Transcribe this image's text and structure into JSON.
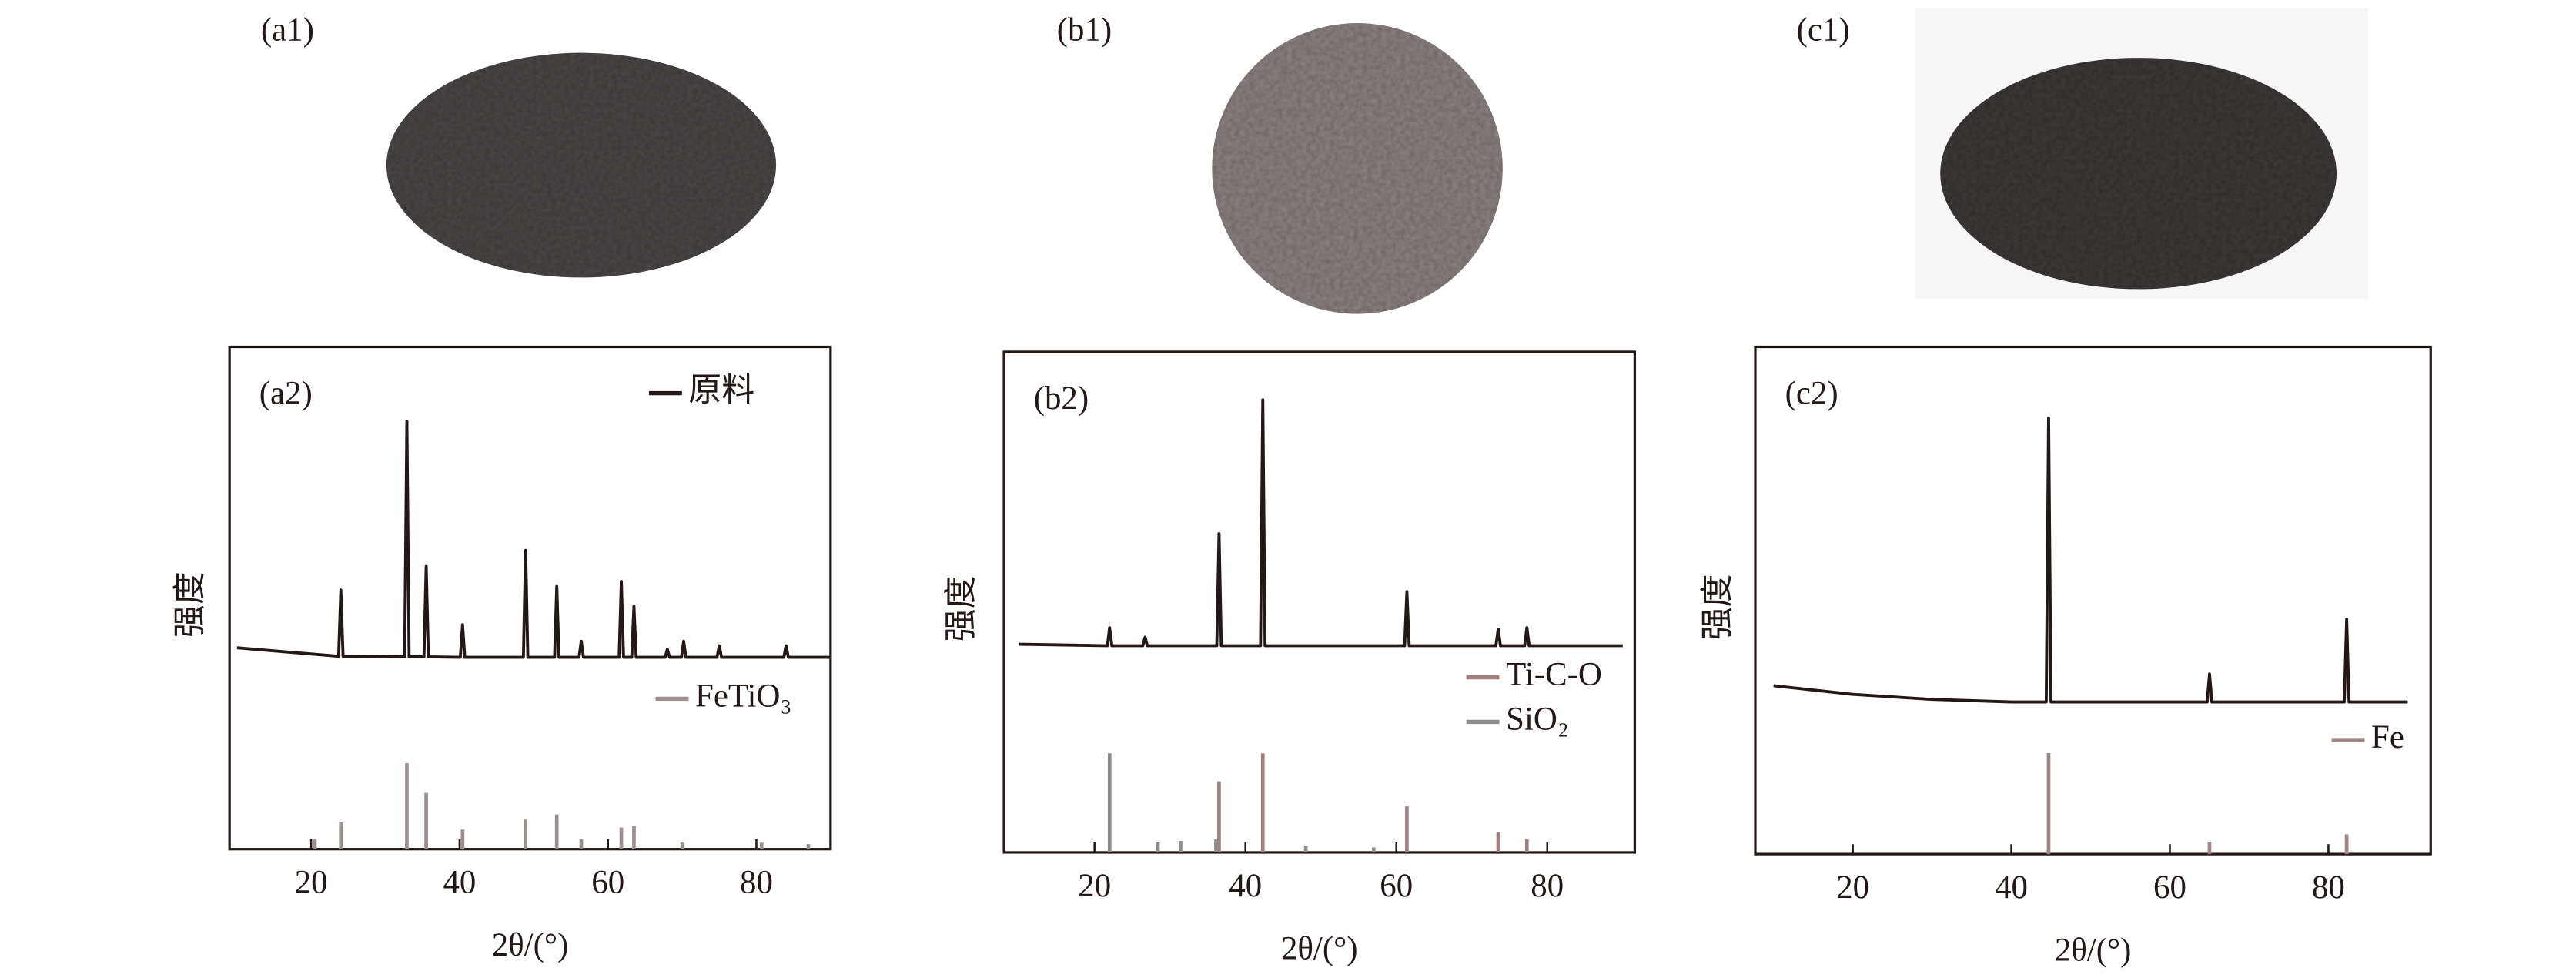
{
  "photos": [
    {
      "label": "(a1)"
    },
    {
      "label": "(b1)"
    },
    {
      "label": "(c1)"
    }
  ],
  "chart_data": [
    {
      "type": "line",
      "panel_label": "(a2)",
      "xlabel": "2θ/(°)",
      "ylabel": "强度",
      "xlim": [
        9,
        90
      ],
      "xticks": [
        20,
        40,
        60,
        80
      ],
      "ylim": [
        0,
        100
      ],
      "series": [
        {
          "name": "原料",
          "color": "#231815",
          "kind": "line",
          "x": [
            10,
            23.7,
            24,
            24.3,
            32.6,
            32.9,
            33.2,
            35.2,
            35.5,
            35.8,
            40.1,
            40.4,
            40.7,
            48.6,
            48.9,
            49.2,
            52.8,
            53.1,
            53.4,
            56.1,
            56.4,
            56.7,
            61.5,
            61.8,
            62.1,
            63.2,
            63.5,
            63.8,
            67.7,
            68,
            68.3,
            69.9,
            70.2,
            70.5,
            74.7,
            75,
            75.3,
            83.7,
            84,
            84.3,
            90
          ],
          "values": [
            40.1,
            38.4,
            51.6,
            38.4,
            38.3,
            85.2,
            38.3,
            38.3,
            56.3,
            38.3,
            38.2,
            44.7,
            38.2,
            38.2,
            59.5,
            38.2,
            38.2,
            52.3,
            38.2,
            38.2,
            41.4,
            38.2,
            38.2,
            53.3,
            38.2,
            38.2,
            48.4,
            38.2,
            38.2,
            39.8,
            38.2,
            38.2,
            41.4,
            38.2,
            38.2,
            40.5,
            38.2,
            38.2,
            40.5,
            38.2,
            38.2
          ]
        },
        {
          "name": "FeTiO₃",
          "color": "#9e8f8f",
          "kind": "stick",
          "x": [
            20.5,
            24,
            32.9,
            35.5,
            40.4,
            48.9,
            53.1,
            56.4,
            61.8,
            63.5,
            70,
            80.7,
            87
          ],
          "values": [
            2,
            5.3,
            17.1,
            11.2,
            3.9,
            5.9,
            6.9,
            2,
            4.3,
            4.6,
            1.3,
            1.3,
            1
          ]
        }
      ]
    },
    {
      "type": "line",
      "panel_label": "(b2)",
      "xlabel": "2θ/(°)",
      "ylabel": "强度",
      "xlim": [
        8,
        91.6
      ],
      "xticks": [
        20,
        40,
        60,
        80
      ],
      "ylim": [
        0,
        100
      ],
      "series": [
        {
          "color": "#231815",
          "kind": "line",
          "x": [
            10,
            21.7,
            22,
            22.3,
            26.4,
            26.7,
            27,
            36.2,
            36.5,
            36.8,
            42,
            42.3,
            42.6,
            61.1,
            61.4,
            61.7,
            73.2,
            73.5,
            73.8,
            77,
            77.3,
            77.6,
            90
          ],
          "values": [
            41.6,
            41.3,
            44.9,
            41.3,
            41.3,
            43,
            41.3,
            41.3,
            63.7,
            41.3,
            41.3,
            90.4,
            41.3,
            41.3,
            52.1,
            41.3,
            41.3,
            44.6,
            41.3,
            41.3,
            44.9,
            41.3,
            41.3
          ]
        },
        {
          "name": "Ti-C-O",
          "color": "#a37e7e",
          "kind": "stick",
          "x": [
            36.5,
            42.3,
            61.4,
            73.5,
            77.3
          ],
          "values": [
            14.2,
            19.8,
            9.2,
            4,
            2.6
          ]
        },
        {
          "name": "SiO₂",
          "color": "#8c8c8c",
          "kind": "stick",
          "x": [
            22,
            28.4,
            31.4,
            36.1,
            48,
            57
          ],
          "values": [
            19.8,
            2,
            2.3,
            2.6,
            1.3,
            1
          ]
        }
      ]
    },
    {
      "type": "line",
      "panel_label": "(c2)",
      "xlabel": "2θ/(°)",
      "ylabel": "强度",
      "xlim": [
        7.7,
        92.9
      ],
      "xticks": [
        20,
        40,
        60,
        80
      ],
      "ylim": [
        0,
        100
      ],
      "series": [
        {
          "color": "#231815",
          "kind": "line",
          "x": [
            10,
            20,
            30,
            40,
            44.4,
            44.7,
            45,
            64.7,
            65,
            65.3,
            82,
            82.3,
            82.6,
            90
          ],
          "values": [
            33.2,
            31.5,
            30.5,
            30,
            30,
            86,
            30,
            30,
            35.5,
            30,
            30,
            46.3,
            30,
            30
          ]
        },
        {
          "name": "Fe",
          "color": "#9e8585",
          "kind": "stick",
          "x": [
            44.7,
            65,
            82.3
          ],
          "values": [
            19.9,
            2.3,
            3.9
          ]
        }
      ]
    }
  ]
}
